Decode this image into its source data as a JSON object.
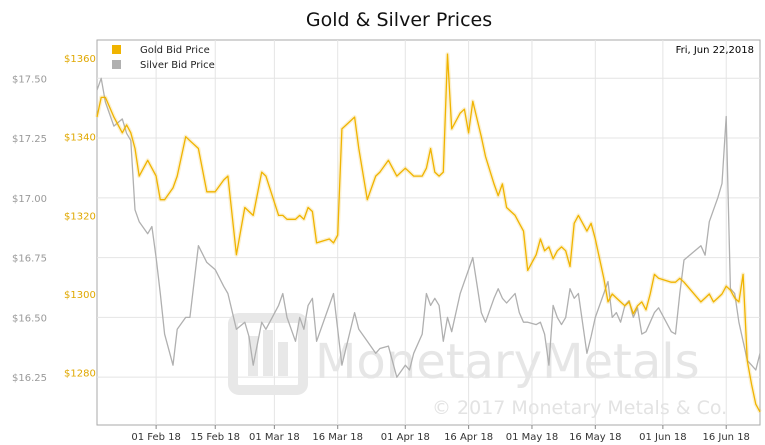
{
  "chart_data": {
    "type": "line",
    "title": "Gold & Silver Prices",
    "date_label": "Fri, Jun 22,2018",
    "watermark": "MonetaryMetals",
    "copyright": "© 2017 Monetary Metals & Co.",
    "x_ticks": [
      "01 Feb 18",
      "15 Feb 18",
      "01 Mar 18",
      "16 Mar 18",
      "01 Apr 18",
      "16 Apr 18",
      "01 May 18",
      "16 May 18",
      "01 Jun 18",
      "16 Jun 18"
    ],
    "x_tick_days": [
      14,
      28,
      42,
      57,
      73,
      88,
      103,
      118,
      134,
      149
    ],
    "x_domain": [
      0,
      157
    ],
    "y_left": {
      "ticks": [
        "$17.50",
        "$17.25",
        "$17.00",
        "$16.75",
        "$16.50",
        "$16.25"
      ],
      "tick_values": [
        17.5,
        17.25,
        17.0,
        16.75,
        16.5,
        16.25
      ],
      "range": [
        16.05,
        17.66
      ]
    },
    "y_right": {
      "ticks": [
        "$1360",
        "$1340",
        "$1320",
        "$1300",
        "$1280"
      ],
      "tick_values": [
        1360,
        1340,
        1320,
        1300,
        1280
      ],
      "range": [
        1266.7,
        1364.6
      ]
    },
    "series": [
      {
        "name": "Gold Bid Price",
        "color": "#f0b400",
        "axis": "right",
        "x": [
          0,
          1,
          2,
          4,
          6,
          7,
          8,
          9,
          10,
          12,
          13,
          14,
          15,
          16,
          18,
          19,
          21,
          22,
          24,
          26,
          28,
          30,
          31,
          33,
          35,
          36,
          37,
          39,
          40,
          43,
          44,
          45,
          47,
          48,
          49,
          50,
          51,
          52,
          55,
          56,
          57,
          58,
          61,
          62,
          64,
          66,
          67,
          69,
          71,
          73,
          74,
          75,
          77,
          78,
          79,
          80,
          81,
          82,
          83,
          84,
          86,
          87,
          88,
          89,
          91,
          92,
          94,
          95,
          96,
          97,
          99,
          100,
          101,
          102,
          104,
          105,
          106,
          107,
          108,
          109,
          110,
          111,
          112,
          113,
          114,
          116,
          117,
          118,
          120,
          121,
          122,
          123,
          124,
          125,
          126,
          127,
          128,
          129,
          130,
          131,
          132,
          133,
          136,
          137,
          138,
          139,
          143,
          144,
          145,
          146,
          147,
          148,
          149,
          150,
          151,
          152,
          153,
          154,
          155,
          156,
          157
        ],
        "y": [
          1345,
          1350,
          1350,
          1345,
          1341,
          1343,
          1341,
          1337,
          1330,
          1334,
          1332,
          1330,
          1324,
          1324,
          1327,
          1330,
          1340,
          1339,
          1337,
          1326,
          1326,
          1329,
          1330,
          1310,
          1322,
          1321,
          1320,
          1331,
          1330,
          1320,
          1320,
          1319,
          1319,
          1320,
          1319,
          1322,
          1321,
          1313,
          1314,
          1313,
          1315,
          1342,
          1345,
          1337,
          1324,
          1330,
          1331,
          1334,
          1330,
          1332,
          1331,
          1330,
          1330,
          1332,
          1337,
          1331,
          1330,
          1331,
          1361,
          1342,
          1346,
          1347,
          1341,
          1349,
          1340,
          1335,
          1328,
          1325,
          1328,
          1322,
          1320,
          1318,
          1316,
          1306,
          1310,
          1314,
          1311,
          1312,
          1309,
          1311,
          1312,
          1311,
          1307,
          1318,
          1320,
          1316,
          1318,
          1314,
          1304,
          1298,
          1300,
          1299,
          1298,
          1297,
          1298,
          1295,
          1297,
          1298,
          1296,
          1300,
          1305,
          1304,
          1303,
          1303,
          1304,
          1303,
          1298,
          1299,
          1300,
          1298,
          1299,
          1300,
          1302,
          1301,
          1299,
          1298,
          1305,
          1283,
          1277,
          1272,
          1270
        ]
      },
      {
        "name": "Silver Bid Price",
        "color": "#b0b0b0",
        "axis": "left",
        "x": [
          0,
          1,
          2,
          4,
          6,
          7,
          8,
          9,
          10,
          12,
          13,
          14,
          15,
          16,
          18,
          19,
          21,
          22,
          24,
          26,
          28,
          30,
          31,
          33,
          35,
          36,
          37,
          39,
          40,
          43,
          44,
          45,
          47,
          48,
          49,
          50,
          51,
          52,
          55,
          56,
          57,
          58,
          61,
          62,
          64,
          66,
          67,
          69,
          71,
          73,
          74,
          75,
          77,
          78,
          79,
          80,
          81,
          82,
          83,
          84,
          86,
          87,
          88,
          89,
          91,
          92,
          94,
          95,
          96,
          97,
          99,
          100,
          101,
          102,
          104,
          105,
          106,
          107,
          108,
          109,
          110,
          111,
          112,
          113,
          114,
          116,
          117,
          118,
          120,
          121,
          122,
          123,
          124,
          125,
          126,
          127,
          128,
          129,
          130,
          131,
          132,
          133,
          136,
          137,
          138,
          139,
          143,
          144,
          145,
          146,
          147,
          148,
          149,
          150,
          151,
          152,
          153,
          154,
          155,
          156,
          157
        ],
        "y": [
          17.45,
          17.5,
          17.4,
          17.3,
          17.33,
          17.27,
          17.24,
          16.95,
          16.9,
          16.85,
          16.88,
          16.75,
          16.6,
          16.43,
          16.3,
          16.45,
          16.5,
          16.5,
          16.8,
          16.73,
          16.7,
          16.63,
          16.6,
          16.45,
          16.48,
          16.42,
          16.3,
          16.48,
          16.45,
          16.55,
          16.6,
          16.5,
          16.4,
          16.5,
          16.45,
          16.55,
          16.58,
          16.4,
          16.55,
          16.6,
          16.45,
          16.3,
          16.52,
          16.45,
          16.4,
          16.35,
          16.37,
          16.38,
          16.25,
          16.3,
          16.28,
          16.35,
          16.43,
          16.6,
          16.55,
          16.58,
          16.55,
          16.4,
          16.5,
          16.44,
          16.6,
          16.65,
          16.7,
          16.75,
          16.52,
          16.48,
          16.58,
          16.62,
          16.58,
          16.56,
          16.6,
          16.52,
          16.48,
          16.48,
          16.47,
          16.48,
          16.43,
          16.3,
          16.55,
          16.5,
          16.47,
          16.5,
          16.62,
          16.58,
          16.6,
          16.35,
          16.42,
          16.5,
          16.6,
          16.65,
          16.5,
          16.52,
          16.48,
          16.55,
          16.57,
          16.5,
          16.54,
          16.43,
          16.44,
          16.48,
          16.52,
          16.54,
          16.44,
          16.43,
          16.6,
          16.74,
          16.8,
          16.76,
          16.9,
          16.95,
          17.0,
          17.06,
          17.34,
          16.62,
          16.6,
          16.48,
          16.4,
          16.32,
          16.3,
          16.28,
          16.35
        ]
      }
    ],
    "legend_position": "top-left",
    "grid": true
  }
}
